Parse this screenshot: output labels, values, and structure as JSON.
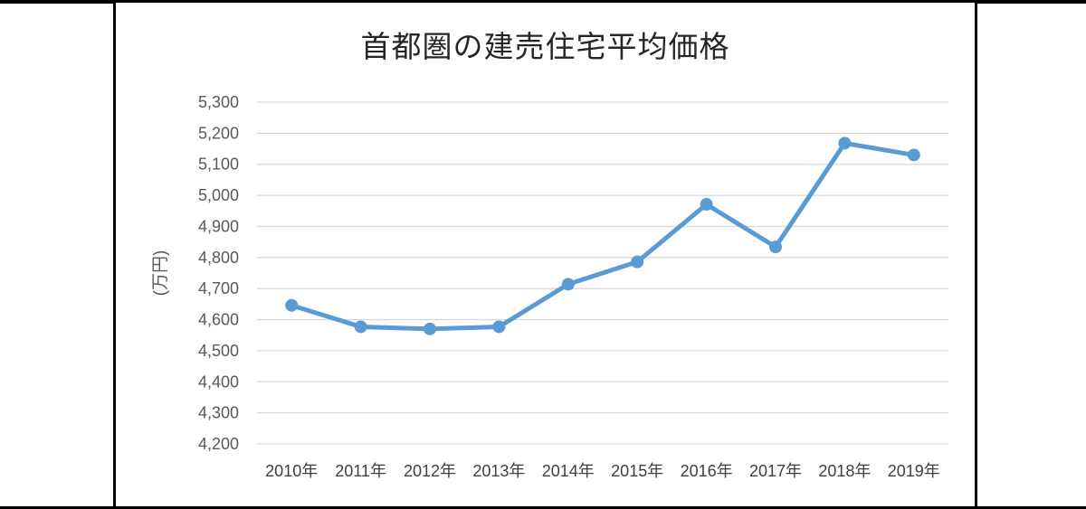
{
  "page": {
    "kind": "chart-image"
  },
  "chart_data": {
    "type": "line",
    "title": "首都圏の建売住宅平均価格",
    "ylabel": "(万円)",
    "xlabel": "",
    "categories": [
      "2010年",
      "2011年",
      "2012年",
      "2013年",
      "2014年",
      "2015年",
      "2016年",
      "2017年",
      "2018年",
      "2019年"
    ],
    "series": [
      {
        "values": [
          4646,
          4577,
          4570,
          4577,
          4714,
          4786,
          4971,
          4834,
          5168,
          5130
        ]
      }
    ],
    "ylim": [
      4200,
      5300
    ],
    "ytick_step": 100,
    "ytick_labels": [
      "5,300",
      "5,200",
      "5,100",
      "5,000",
      "4,900",
      "4,800",
      "4,700",
      "4,600",
      "4,500",
      "4,400",
      "4,300",
      "4,200"
    ],
    "grid": "horizontal",
    "legend": "none",
    "colors": {
      "line": "#5B9BD5",
      "marker": "#5B9BD5",
      "gridline": "#D9D9D9",
      "ytick_label": "#595959",
      "xtick_label": "#404040",
      "yaxis_title": "#595959",
      "title": "#262626",
      "frame_border": "#000000"
    }
  }
}
